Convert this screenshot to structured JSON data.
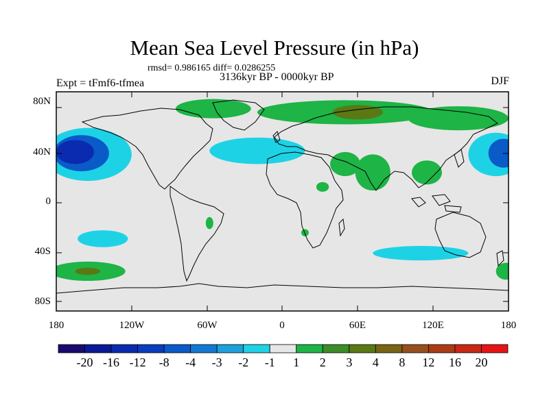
{
  "title": "Mean Sea Level Pressure (in hPa)",
  "stats": "rmsd= 0.986165 diff= 0.0286255",
  "experiment": "Expt = tFmf6-tfmea",
  "period": "3136kyr BP - 0000kyr BP",
  "season": "DJF",
  "lat_labels": [
    "80N",
    "40N",
    "0",
    "40S",
    "80S"
  ],
  "lon_labels": [
    "180",
    "120W",
    "60W",
    "0",
    "60E",
    "120E",
    "180"
  ],
  "colorbar": {
    "colors": [
      "#1a0a6e",
      "#0a1a96",
      "#0a2ab0",
      "#0a3cbe",
      "#0a5ac8",
      "#1478d2",
      "#1ea0dc",
      "#1ed2e6",
      "#e6e6e6",
      "#1eb446",
      "#3c8c28",
      "#5a7814",
      "#786414",
      "#96501e",
      "#aa3c14",
      "#c82814",
      "#e61414"
    ],
    "labels": [
      "-20",
      "-16",
      "-12",
      "-8",
      "-4",
      "-3",
      "-2",
      "-1",
      "1",
      "2",
      "3",
      "4",
      "8",
      "12",
      "16",
      "20"
    ]
  },
  "anomaly_regions": [
    {
      "name": "north-pacific-low-west",
      "color": "#1ed2e6",
      "lon": -155,
      "lat": 40,
      "rlon": 35,
      "rlat": 22
    },
    {
      "name": "north-pacific-low-west-2",
      "color": "#0a5ac8",
      "lon": -160,
      "lat": 41,
      "rlon": 22,
      "rlat": 15
    },
    {
      "name": "north-pacific-low-west-3",
      "color": "#0a2ab0",
      "lon": -165,
      "lat": 42,
      "rlon": 15,
      "rlat": 10
    },
    {
      "name": "north-pacific-low-east",
      "color": "#1ed2e6",
      "lon": 170,
      "lat": 40,
      "rlon": 22,
      "rlat": 18
    },
    {
      "name": "north-pacific-low-east-2",
      "color": "#0a5ac8",
      "lon": 176,
      "lat": 41,
      "rlon": 12,
      "rlat": 12
    },
    {
      "name": "north-atlantic-low",
      "color": "#1ed2e6",
      "lon": -20,
      "lat": 43,
      "rlon": 38,
      "rlat": 11
    },
    {
      "name": "south-pacific-low",
      "color": "#1ed2e6",
      "lon": -143,
      "lat": -30,
      "rlon": 20,
      "rlat": 7
    },
    {
      "name": "southern-ocean-low",
      "color": "#1ed2e6",
      "lon": 110,
      "lat": -42,
      "rlon": 38,
      "rlat": 6
    },
    {
      "name": "arctic-high",
      "color": "#1eb446",
      "lon": 50,
      "lat": 75,
      "rlon": 70,
      "rlat": 10
    },
    {
      "name": "arctic-high-2",
      "color": "#1eb446",
      "lon": -55,
      "lat": 78,
      "rlon": 30,
      "rlat": 8
    },
    {
      "name": "arctic-high-3",
      "color": "#1eb446",
      "lon": 140,
      "lat": 70,
      "rlon": 40,
      "rlat": 10
    },
    {
      "name": "siberia-high-core",
      "color": "#5a7814",
      "lon": 60,
      "lat": 75,
      "rlon": 20,
      "rlat": 6
    },
    {
      "name": "india-high",
      "color": "#1eb446",
      "lon": 72,
      "lat": 25,
      "rlon": 14,
      "rlat": 15
    },
    {
      "name": "arabia-high",
      "color": "#1eb446",
      "lon": 50,
      "lat": 32,
      "rlon": 12,
      "rlat": 10
    },
    {
      "name": "china-high",
      "color": "#1eb446",
      "lon": 115,
      "lat": 25,
      "rlon": 12,
      "rlat": 10
    },
    {
      "name": "africa-high",
      "color": "#1eb446",
      "lon": 32,
      "lat": 13,
      "rlon": 5,
      "rlat": 4
    },
    {
      "name": "south-america-high",
      "color": "#1eb446",
      "lon": -58,
      "lat": -17,
      "rlon": 3,
      "rlat": 5
    },
    {
      "name": "south-africa-high",
      "color": "#1eb446",
      "lon": 18,
      "lat": -25,
      "rlon": 3,
      "rlat": 3
    },
    {
      "name": "south-pacific-high",
      "color": "#1eb446",
      "lon": -155,
      "lat": -57,
      "rlon": 30,
      "rlat": 8
    },
    {
      "name": "south-pacific-high-core",
      "color": "#5a7814",
      "lon": -155,
      "lat": -57,
      "rlon": 10,
      "rlat": 3
    },
    {
      "name": "southern-indian-high",
      "color": "#1eb446",
      "lon": 178,
      "lat": -57,
      "rlon": 8,
      "rlat": 7
    }
  ]
}
